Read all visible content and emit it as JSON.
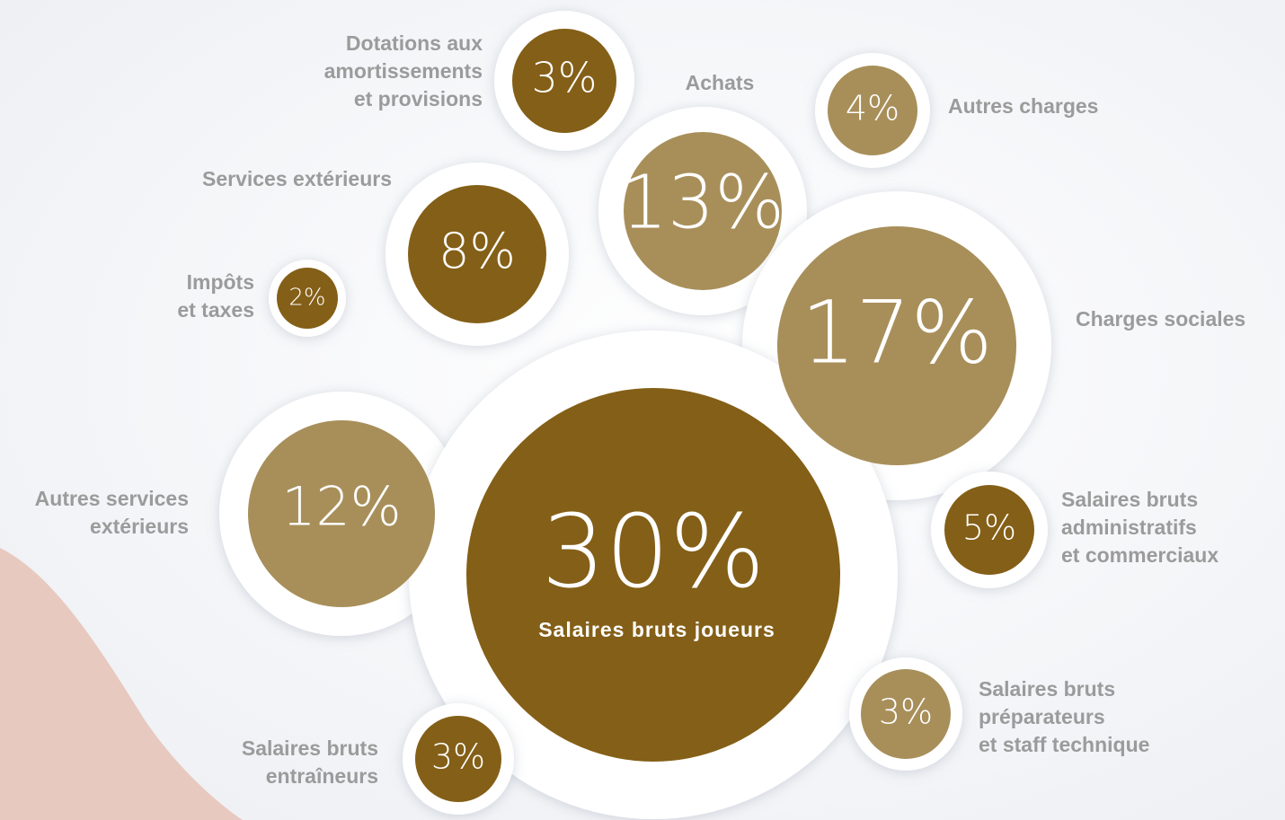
{
  "chart_data": {
    "type": "bubble",
    "categories": [
      [
        "Dotations aux",
        "amortissements",
        "et provisions"
      ],
      [
        "Achats"
      ],
      [
        "Autres charges"
      ],
      [
        "Services extérieurs"
      ],
      [
        "Impôts",
        "et taxes"
      ],
      [
        "Charges sociales"
      ],
      [
        "Autres services",
        "extérieurs"
      ],
      [
        "Salaires bruts joueurs"
      ],
      [
        "Salaires bruts",
        "administratifs",
        "et commerciaux"
      ],
      [
        "Salaires bruts",
        "préparateurs",
        "et staff technique"
      ],
      [
        "Salaires bruts",
        "entraîneurs"
      ]
    ],
    "values": [
      3,
      13,
      4,
      8,
      2,
      17,
      12,
      30,
      5,
      3,
      3
    ],
    "value_labels": [
      "3%",
      "13%",
      "4%",
      "8%",
      "2%",
      "17%",
      "12%",
      "30%",
      "5%",
      "3%",
      "3%"
    ],
    "colors": [
      "#845f17",
      "#a88f5a",
      "#a88f5a",
      "#845f17",
      "#845f17",
      "#a88f5a",
      "#a88f5a",
      "#845f17",
      "#845f17",
      "#a88f5a",
      "#845f17"
    ]
  }
}
